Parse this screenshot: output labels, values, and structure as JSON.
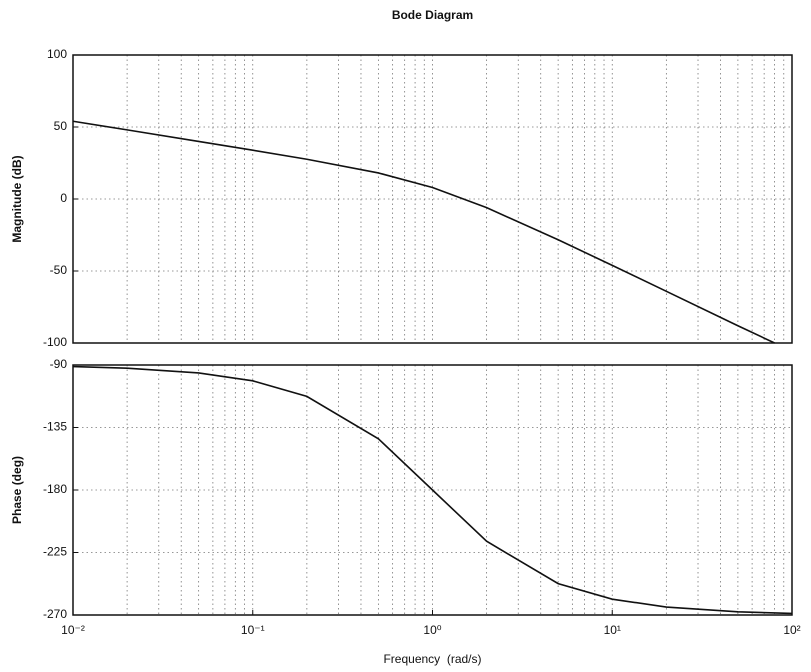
{
  "chart_data": [
    {
      "type": "line",
      "title": "Bode Diagram",
      "ylabel": "Magnitude (dB)",
      "xscale": "log",
      "grid": true,
      "xlim": [
        0.01,
        100
      ],
      "ylim": [
        -100,
        100
      ],
      "yticks": [
        -100,
        -50,
        0,
        50,
        100
      ],
      "x": [
        0.01,
        0.02,
        0.05,
        0.1,
        0.2,
        0.5,
        1,
        2,
        5,
        10,
        20,
        50,
        80
      ],
      "series": [
        {
          "color": "#111111",
          "values": [
            54,
            48,
            40,
            33.9,
            27.6,
            18.1,
            8,
            -6,
            -28.3,
            -46.1,
            -64.1,
            -88,
            -100
          ]
        }
      ]
    },
    {
      "type": "line",
      "ylabel": "Phase (deg)",
      "xlabel": "Frequency  (rad/s)",
      "xscale": "log",
      "grid": true,
      "xlim": [
        0.01,
        100
      ],
      "ylim": [
        -270,
        -90
      ],
      "yticks": [
        -270,
        -225,
        -180,
        -135,
        -90
      ],
      "xticks": [
        {
          "value": 0.01,
          "label": "10⁻²"
        },
        {
          "value": 0.1,
          "label": "10⁻¹"
        },
        {
          "value": 1,
          "label": "10⁰"
        },
        {
          "value": 10,
          "label": "10¹"
        },
        {
          "value": 100,
          "label": "10²"
        }
      ],
      "x": [
        0.01,
        0.02,
        0.05,
        0.1,
        0.2,
        0.5,
        1,
        2,
        5,
        10,
        20,
        50,
        100
      ],
      "series": [
        {
          "color": "#111111",
          "values": [
            -91.1,
            -92.3,
            -95.7,
            -101.4,
            -112.6,
            -143.1,
            -180,
            -216.9,
            -247.4,
            -258.6,
            -264.3,
            -267.7,
            -268.9
          ]
        }
      ]
    }
  ]
}
